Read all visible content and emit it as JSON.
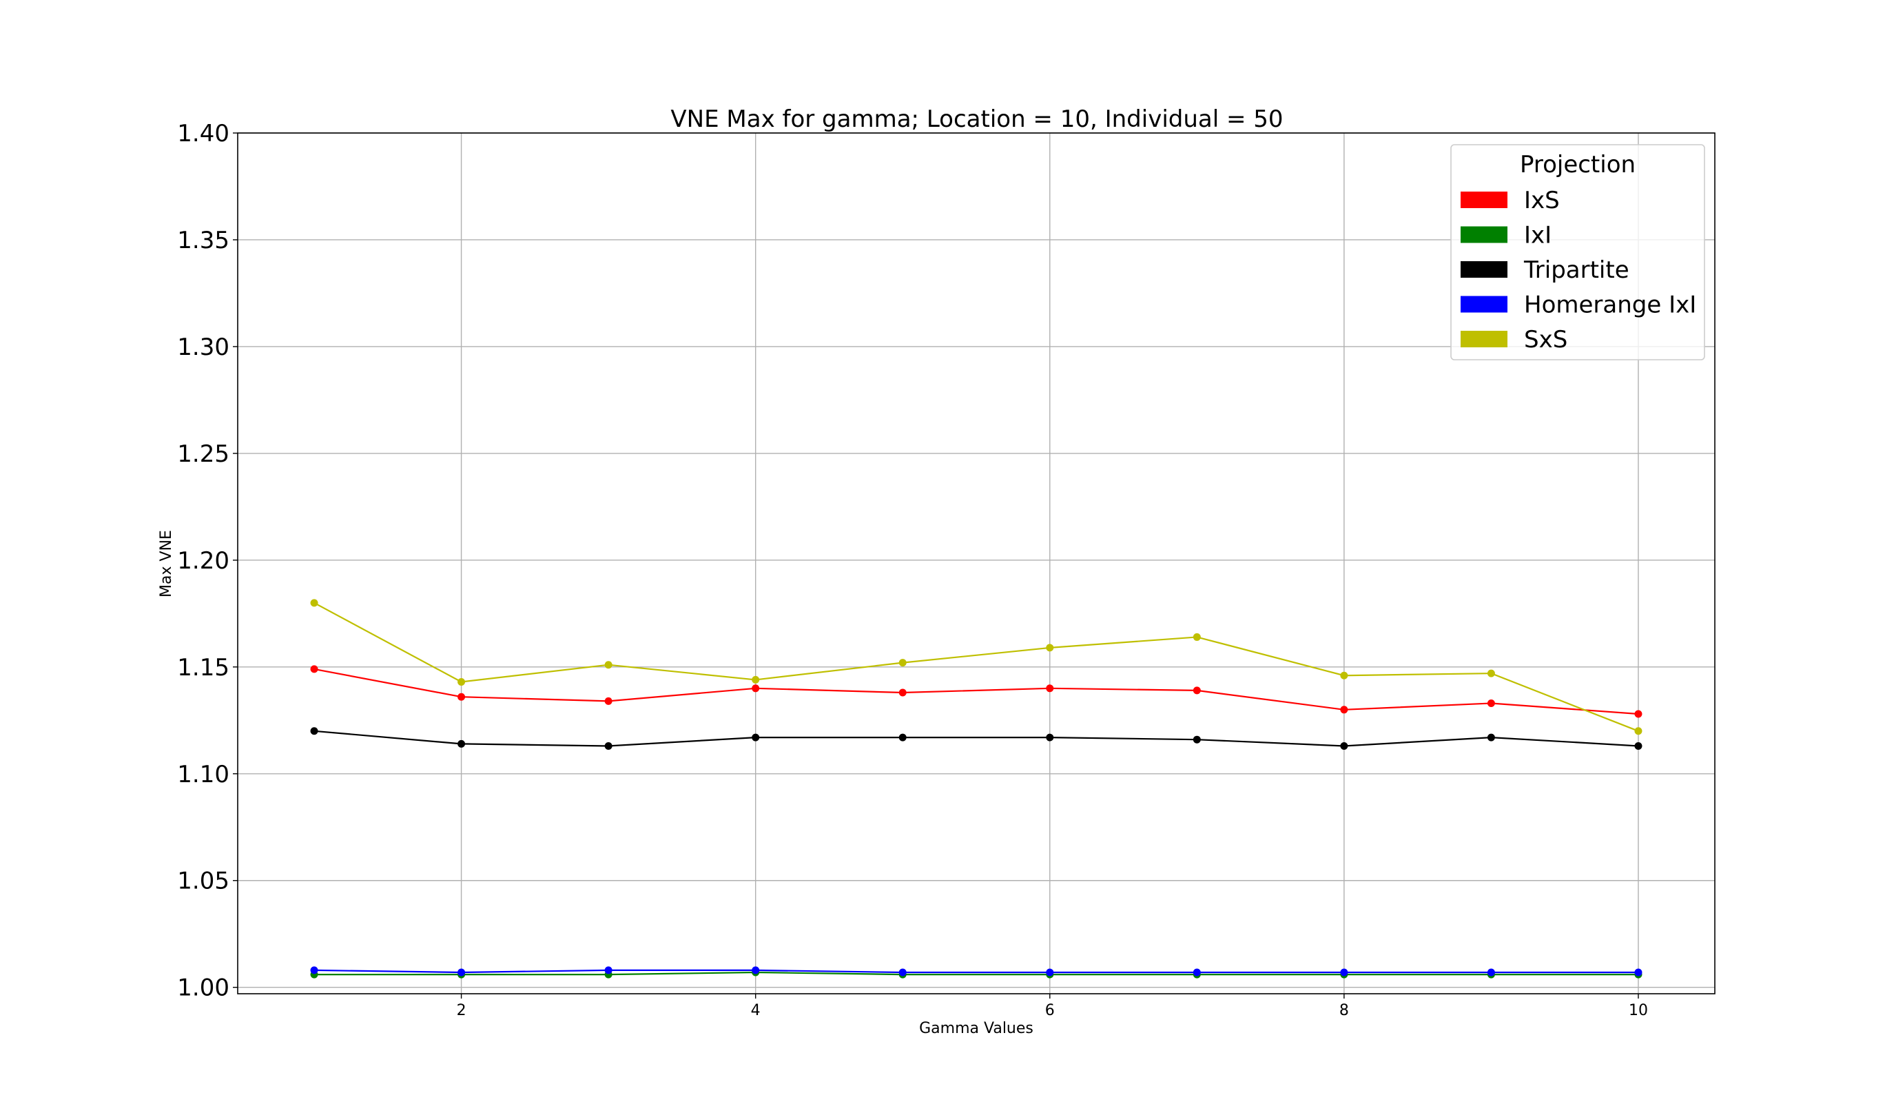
{
  "chart_data": {
    "type": "line",
    "title": "VNE Max for gamma; Location = 10, Individual = 50",
    "xlabel": "Gamma Values",
    "ylabel": "Max VNE",
    "xlim": [
      0.48,
      10.52
    ],
    "ylim": [
      0.997,
      1.4
    ],
    "xticks": [
      2,
      4,
      6,
      8,
      10
    ],
    "yticks": [
      1.0,
      1.05,
      1.1,
      1.15,
      1.2,
      1.25,
      1.3,
      1.35,
      1.4
    ],
    "ytick_labels": [
      "1.00",
      "1.05",
      "1.10",
      "1.15",
      "1.20",
      "1.25",
      "1.30",
      "1.35",
      "1.40"
    ],
    "xtick_labels": [
      "2",
      "4",
      "6",
      "8",
      "10"
    ],
    "grid": true,
    "legend": {
      "title": "Projection",
      "position": "top-right"
    },
    "x": [
      1,
      2,
      3,
      4,
      5,
      6,
      7,
      8,
      9,
      10
    ],
    "series": [
      {
        "name": "IxS",
        "color": "#ff0000",
        "values": [
          1.149,
          1.136,
          1.134,
          1.14,
          1.138,
          1.14,
          1.139,
          1.13,
          1.133,
          1.128
        ]
      },
      {
        "name": "IxI",
        "color": "#008000",
        "values": [
          1.006,
          1.006,
          1.006,
          1.007,
          1.006,
          1.006,
          1.006,
          1.006,
          1.006,
          1.006
        ]
      },
      {
        "name": "Tripartite",
        "color": "#000000",
        "values": [
          1.12,
          1.114,
          1.113,
          1.117,
          1.117,
          1.117,
          1.116,
          1.113,
          1.117,
          1.113
        ]
      },
      {
        "name": "Homerange IxI",
        "color": "#0000ff",
        "values": [
          1.008,
          1.007,
          1.008,
          1.008,
          1.007,
          1.007,
          1.007,
          1.007,
          1.007,
          1.007
        ]
      },
      {
        "name": "SxS",
        "color": "#bfbf00",
        "values": [
          1.18,
          1.143,
          1.151,
          1.144,
          1.152,
          1.159,
          1.164,
          1.146,
          1.147,
          1.12
        ]
      }
    ]
  }
}
